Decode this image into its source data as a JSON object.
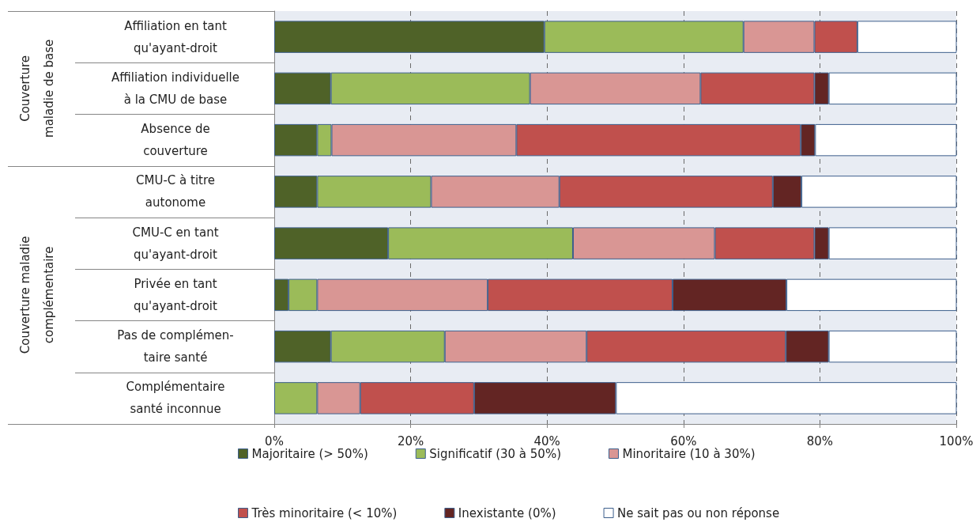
{
  "chart_data": {
    "type": "bar",
    "orientation": "horizontal",
    "stacked": true,
    "categories": [
      "Affiliation en tant\nqu'ayant-droit",
      "Affiliation individuelle\nà la CMU de base",
      "Absence de\ncouverture",
      "CMU-C à titre\nautonome",
      "CMU-C en tant\nqu'ayant-droit",
      "Privée en tant\nqu'ayant-droit",
      "Pas de complémen-\ntaire santé",
      "Complémentaire\nsanté inconnue"
    ],
    "series": [
      {
        "name": "Majoritaire (> 50%)",
        "color": "#4f6228",
        "values": [
          39.6,
          8.3,
          6.3,
          6.3,
          16.7,
          2.1,
          8.3,
          0
        ]
      },
      {
        "name": "Significatif (30 à 50%)",
        "color": "#9bbb59",
        "values": [
          29.2,
          29.2,
          2.1,
          16.7,
          27.1,
          4.2,
          16.7,
          6.3
        ]
      },
      {
        "name": "Minoritaire (10 à 30%)",
        "color": "#d99694",
        "values": [
          10.4,
          25.0,
          27.1,
          18.8,
          20.8,
          25.0,
          20.8,
          6.3
        ]
      },
      {
        "name": "Très minoritaire (< 10%)",
        "color": "#c0504d",
        "values": [
          6.3,
          16.7,
          41.7,
          31.3,
          14.6,
          27.1,
          29.2,
          16.7
        ]
      },
      {
        "name": "Inexistante (0%)",
        "color": "#632523",
        "values": [
          0,
          2.1,
          2.1,
          4.2,
          2.1,
          16.7,
          6.3,
          20.8
        ]
      },
      {
        "name": "Ne sait pas ou non réponse",
        "color": "#ffffff",
        "values": [
          14.6,
          18.8,
          20.8,
          22.9,
          18.8,
          25.0,
          18.8,
          50.0
        ]
      }
    ],
    "xlim": [
      0,
      100
    ],
    "xticks": [
      {
        "value": 0,
        "label": "0%"
      },
      {
        "value": 20,
        "label": "20%"
      },
      {
        "value": 40,
        "label": "40%"
      },
      {
        "value": 60,
        "label": "60%"
      },
      {
        "value": 80,
        "label": "80%"
      },
      {
        "value": 100,
        "label": "100%"
      }
    ],
    "grid": "x",
    "legend": "bottom",
    "annotations": [
      "Couverture\nmaladie de base",
      "Couverture maladie\ncomplémentaire"
    ]
  }
}
